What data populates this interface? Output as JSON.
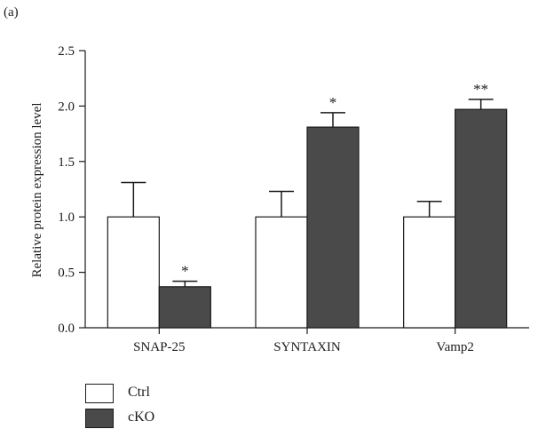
{
  "panel_label": "(a)",
  "colors": {
    "ctrl": "#ffffff",
    "cko": "#4a4a4a",
    "stroke": "#1a1a1a"
  },
  "chart_data": {
    "type": "bar",
    "title": "",
    "xlabel": "",
    "ylabel": "Relative protein expression level",
    "ylim": [
      0,
      2.5
    ],
    "yticks": [
      "0.0",
      "0.5",
      "1.0",
      "1.5",
      "2.0",
      "2.5"
    ],
    "categories": [
      "SNAP-25",
      "SYNTAXIN",
      "Vamp2"
    ],
    "series": [
      {
        "name": "Ctrl",
        "color": "#ffffff",
        "values": [
          1.0,
          1.0,
          1.0
        ],
        "errors": [
          0.31,
          0.23,
          0.14
        ],
        "significance": [
          "",
          "",
          ""
        ]
      },
      {
        "name": "cKO",
        "color": "#4a4a4a",
        "values": [
          0.37,
          1.81,
          1.97
        ],
        "errors": [
          0.05,
          0.13,
          0.09
        ],
        "significance": [
          "*",
          "*",
          "**"
        ]
      }
    ],
    "legend_position": "bottom-left"
  }
}
